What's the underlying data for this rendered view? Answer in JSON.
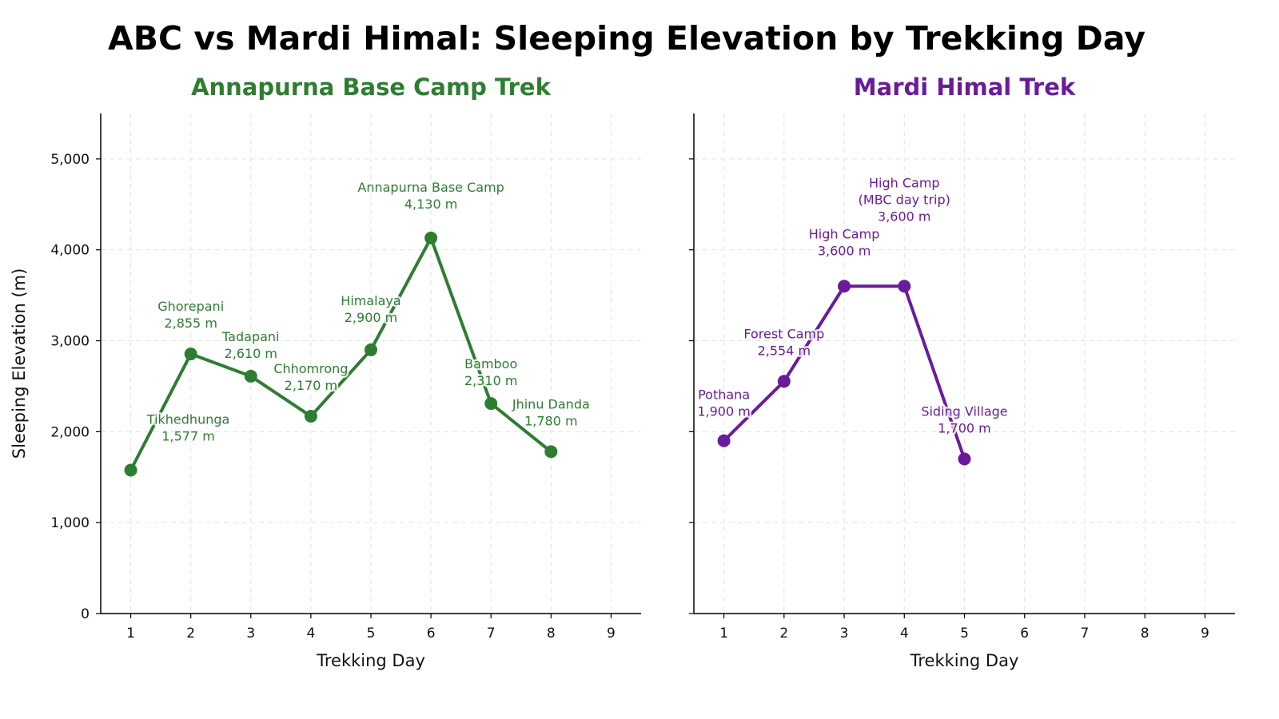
{
  "figure": {
    "title": "ABC vs Mardi Himal: Sleeping Elevation by Trekking Day"
  },
  "chart_data": [
    {
      "type": "line",
      "title": "Annapurna Base Camp Trek",
      "xlabel": "Trekking Day",
      "ylabel": "Sleeping Elevation (m)",
      "color": "#2e7d32",
      "xlim": [
        0.5,
        9.5
      ],
      "ylim": [
        0,
        5500
      ],
      "xticks": [
        1,
        2,
        3,
        4,
        5,
        6,
        7,
        8,
        9
      ],
      "yticks": [
        0,
        1000,
        2000,
        3000,
        4000,
        5000
      ],
      "ytick_labels": [
        "0",
        "1,000",
        "2,000",
        "3,000",
        "4,000",
        "5,000"
      ],
      "grid": true,
      "x": [
        1,
        2,
        3,
        4,
        5,
        6,
        7,
        8
      ],
      "y": [
        1577,
        2855,
        2610,
        2170,
        2900,
        4130,
        2310,
        1780
      ],
      "labels": [
        [
          "Tikhedhunga",
          "1,577 m"
        ],
        [
          "Ghorepani",
          "2,855 m"
        ],
        [
          "Tadapani",
          "2,610 m"
        ],
        [
          "Chhomrong",
          "2,170 m"
        ],
        [
          "Himalaya",
          "2,900 m"
        ],
        [
          "Annapurna Base Camp",
          "4,130 m"
        ],
        [
          "Bamboo",
          "2,310 m"
        ],
        [
          "Jhinu Danda",
          "1,780 m"
        ]
      ]
    },
    {
      "type": "line",
      "title": "Mardi Himal Trek",
      "xlabel": "Trekking Day",
      "ylabel": "",
      "color": "#6a1b9a",
      "xlim": [
        0.5,
        9.5
      ],
      "ylim": [
        0,
        5500
      ],
      "xticks": [
        1,
        2,
        3,
        4,
        5,
        6,
        7,
        8,
        9
      ],
      "yticks": [
        0,
        1000,
        2000,
        3000,
        4000,
        5000
      ],
      "grid": true,
      "x": [
        1,
        2,
        3,
        4,
        5
      ],
      "y": [
        1900,
        2554,
        3600,
        3600,
        1700
      ],
      "labels": [
        [
          "Pothana",
          "1,900 m"
        ],
        [
          "Forest Camp",
          "2,554 m"
        ],
        [
          "High Camp",
          "3,600 m"
        ],
        [
          "High Camp",
          "(MBC day trip)",
          "3,600 m"
        ],
        [
          "Siding Village",
          "1,700 m"
        ]
      ]
    }
  ]
}
